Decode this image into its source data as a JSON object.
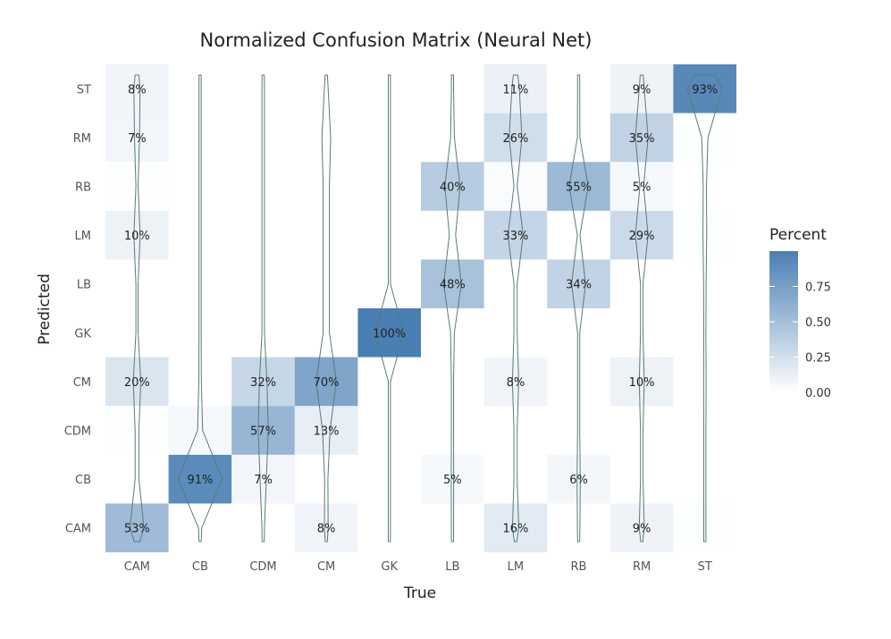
{
  "chart_data": {
    "type": "heatmap",
    "title": "Normalized Confusion Matrix (Neural Net)",
    "xlabel": "True",
    "ylabel": "Predicted",
    "x_categories": [
      "CAM",
      "CB",
      "CDM",
      "CM",
      "GK",
      "LB",
      "LM",
      "RB",
      "RM",
      "ST"
    ],
    "y_categories": [
      "CAM",
      "CB",
      "CDM",
      "CM",
      "GK",
      "LB",
      "LM",
      "RB",
      "RM",
      "ST"
    ],
    "cells": [
      {
        "true": "CAM",
        "predicted": "CAM",
        "value": 0.53,
        "label": "53%"
      },
      {
        "true": "CAM",
        "predicted": "CM",
        "value": 0.2,
        "label": "20%"
      },
      {
        "true": "CAM",
        "predicted": "LM",
        "value": 0.1,
        "label": "10%"
      },
      {
        "true": "CAM",
        "predicted": "RM",
        "value": 0.07,
        "label": "7%"
      },
      {
        "true": "CAM",
        "predicted": "ST",
        "value": 0.08,
        "label": "8%"
      },
      {
        "true": "CAM",
        "predicted": "CDM",
        "value": 0.01,
        "label": ""
      },
      {
        "true": "CAM",
        "predicted": "RB",
        "value": 0.01,
        "label": ""
      },
      {
        "true": "CB",
        "predicted": "CB",
        "value": 0.91,
        "label": "91%"
      },
      {
        "true": "CB",
        "predicted": "CDM",
        "value": 0.05,
        "label": ""
      },
      {
        "true": "CDM",
        "predicted": "CB",
        "value": 0.07,
        "label": "7%"
      },
      {
        "true": "CDM",
        "predicted": "CDM",
        "value": 0.57,
        "label": "57%"
      },
      {
        "true": "CDM",
        "predicted": "CM",
        "value": 0.32,
        "label": "32%"
      },
      {
        "true": "CM",
        "predicted": "CAM",
        "value": 0.08,
        "label": "8%"
      },
      {
        "true": "CM",
        "predicted": "CDM",
        "value": 0.13,
        "label": "13%"
      },
      {
        "true": "CM",
        "predicted": "CM",
        "value": 0.7,
        "label": "70%"
      },
      {
        "true": "GK",
        "predicted": "GK",
        "value": 1.0,
        "label": "100%"
      },
      {
        "true": "LB",
        "predicted": "CB",
        "value": 0.05,
        "label": "5%"
      },
      {
        "true": "LB",
        "predicted": "LB",
        "value": 0.48,
        "label": "48%"
      },
      {
        "true": "LB",
        "predicted": "RB",
        "value": 0.4,
        "label": "40%"
      },
      {
        "true": "LM",
        "predicted": "CAM",
        "value": 0.16,
        "label": "16%"
      },
      {
        "true": "LM",
        "predicted": "CM",
        "value": 0.08,
        "label": "8%"
      },
      {
        "true": "LM",
        "predicted": "LM",
        "value": 0.33,
        "label": "33%"
      },
      {
        "true": "LM",
        "predicted": "RB",
        "value": 0.03,
        "label": ""
      },
      {
        "true": "LM",
        "predicted": "RM",
        "value": 0.26,
        "label": "26%"
      },
      {
        "true": "LM",
        "predicted": "ST",
        "value": 0.11,
        "label": "11%"
      },
      {
        "true": "RB",
        "predicted": "CB",
        "value": 0.06,
        "label": "6%"
      },
      {
        "true": "RB",
        "predicted": "LB",
        "value": 0.34,
        "label": "34%"
      },
      {
        "true": "RB",
        "predicted": "RB",
        "value": 0.55,
        "label": "55%"
      },
      {
        "true": "RM",
        "predicted": "CAM",
        "value": 0.09,
        "label": "9%"
      },
      {
        "true": "RM",
        "predicted": "CM",
        "value": 0.1,
        "label": "10%"
      },
      {
        "true": "RM",
        "predicted": "LM",
        "value": 0.29,
        "label": "29%"
      },
      {
        "true": "RM",
        "predicted": "RB",
        "value": 0.05,
        "label": "5%"
      },
      {
        "true": "RM",
        "predicted": "RM",
        "value": 0.35,
        "label": "35%"
      },
      {
        "true": "RM",
        "predicted": "ST",
        "value": 0.09,
        "label": "9%"
      },
      {
        "true": "ST",
        "predicted": "ST",
        "value": 0.93,
        "label": "93%"
      },
      {
        "true": "ST",
        "predicted": "CAM",
        "value": 0.01,
        "label": ""
      },
      {
        "true": "ST",
        "predicted": "RM",
        "value": 0.01,
        "label": ""
      },
      {
        "true": "ST",
        "predicted": "LM",
        "value": 0.01,
        "label": ""
      }
    ],
    "violins": [
      {
        "true": "CAM",
        "widths": [
          0.22,
          0.06,
          0.06,
          0.12,
          0.02,
          0.02,
          0.1,
          0.02,
          0.08,
          0.1
        ]
      },
      {
        "true": "CB",
        "widths": [
          0.05,
          0.7,
          0.08,
          0.04,
          0.03,
          0.03,
          0.03,
          0.03,
          0.03,
          0.03
        ]
      },
      {
        "true": "CDM",
        "widths": [
          0.04,
          0.1,
          0.16,
          0.12,
          0.04,
          0.04,
          0.04,
          0.04,
          0.04,
          0.04
        ]
      },
      {
        "true": "CM",
        "widths": [
          0.06,
          0.05,
          0.12,
          0.32,
          0.1,
          0.1,
          0.1,
          0.1,
          0.14,
          0.06
        ]
      },
      {
        "true": "GK",
        "widths": [
          0.03,
          0.03,
          0.03,
          0.03,
          0.45,
          0.03,
          0.03,
          0.03,
          0.03,
          0.03
        ]
      },
      {
        "true": "LB",
        "widths": [
          0.03,
          0.04,
          0.03,
          0.03,
          0.06,
          0.28,
          0.1,
          0.24,
          0.06,
          0.03
        ]
      },
      {
        "true": "LM",
        "widths": [
          0.1,
          0.05,
          0.05,
          0.1,
          0.05,
          0.05,
          0.24,
          0.05,
          0.2,
          0.12
        ]
      },
      {
        "true": "RB",
        "widths": [
          0.04,
          0.05,
          0.03,
          0.03,
          0.03,
          0.22,
          0.04,
          0.3,
          0.04,
          0.03
        ]
      },
      {
        "true": "RM",
        "widths": [
          0.08,
          0.04,
          0.04,
          0.08,
          0.04,
          0.04,
          0.2,
          0.06,
          0.2,
          0.08
        ]
      },
      {
        "true": "ST",
        "widths": [
          0.02,
          0.02,
          0.02,
          0.04,
          0.02,
          0.04,
          0.06,
          0.05,
          0.1,
          0.55
        ]
      }
    ],
    "legend": {
      "title": "Percent",
      "ticks": [
        0.0,
        0.25,
        0.5,
        0.75
      ],
      "tick_labels": [
        "0.00",
        "0.25",
        "0.50",
        "0.75"
      ],
      "range": [
        0,
        1
      ],
      "position": "right"
    },
    "colors": {
      "low": "#ffffff",
      "high": "#4a7fb3",
      "violin": "#5a7a7a"
    },
    "grid": false
  }
}
